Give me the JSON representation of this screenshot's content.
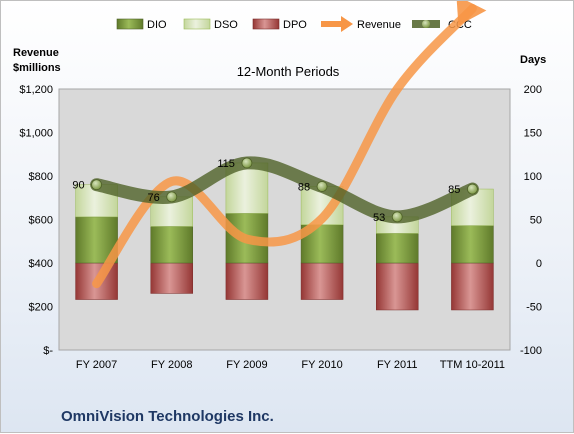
{
  "chart_data": {
    "type": "bar",
    "title": "12-Month Periods",
    "company": "OmniVision Technologies Inc.",
    "categories": [
      "FY 2007",
      "FY 2008",
      "FY 2009",
      "FY 2010",
      "FY 2011",
      "TTM 10-2011"
    ],
    "left_axis": {
      "title_line1": "Revenue",
      "title_line2": "$millions",
      "ylim": [
        0,
        1200
      ],
      "tick_values": [
        0,
        200,
        400,
        600,
        800,
        1000,
        1200
      ],
      "tick_labels": [
        "$-",
        "$200",
        "$400",
        "$600",
        "$800",
        "$1,000",
        "$1,200"
      ]
    },
    "right_axis": {
      "title": "Days",
      "ylim": [
        -100,
        200
      ],
      "tick_values": [
        -100,
        -50,
        0,
        50,
        100,
        150,
        200
      ],
      "tick_labels": [
        "-100",
        "-50",
        "0",
        "50",
        "100",
        "150",
        "200"
      ]
    },
    "series": [
      {
        "name": "DIO",
        "axis": "right",
        "kind": "stacked-bar",
        "values": [
          53,
          42,
          57,
          44,
          34,
          43
        ]
      },
      {
        "name": "DSO",
        "axis": "right",
        "kind": "stacked-bar",
        "values": [
          37,
          34,
          58,
          44,
          19,
          42
        ]
      },
      {
        "name": "DPO",
        "axis": "right",
        "kind": "negative-bar",
        "values": [
          -42,
          -35,
          -42,
          -42,
          -54,
          -54
        ]
      },
      {
        "name": "Revenue",
        "axis": "left",
        "kind": "arrow-line",
        "values": [
          305,
          775,
          510,
          605,
          1200,
          1570
        ]
      },
      {
        "name": "CCC",
        "axis": "right",
        "kind": "line",
        "values": [
          90,
          76,
          115,
          88,
          53,
          85
        ],
        "labels": [
          "90",
          "76",
          "115",
          "88",
          "53",
          "85"
        ]
      }
    ],
    "colors": {
      "DIO": "#77933c",
      "DSO": "#d7e4bd",
      "DPO": "#c0504d",
      "Revenue": "#f79646",
      "CCC": "#4f6228"
    },
    "legend_position": "top",
    "grid": false
  }
}
